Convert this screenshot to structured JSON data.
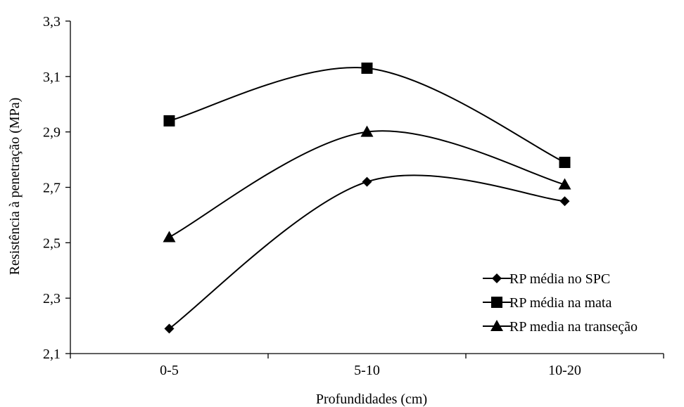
{
  "chart_data": {
    "type": "line",
    "categories": [
      "0-5",
      "5-10",
      "10-20"
    ],
    "xlabel": "Profundidades (cm)",
    "ylabel": "Resistência à penetração  (MPa)",
    "ylim": [
      2.1,
      3.3
    ],
    "yticks": [
      "2,1",
      "2,3",
      "2,5",
      "2,7",
      "2,9",
      "3,1",
      "3,3"
    ],
    "smooth": true,
    "legend_position": "bottom-right",
    "series": [
      {
        "name": "RP média no SPC",
        "marker": "diamond",
        "values": [
          2.19,
          2.72,
          2.65
        ]
      },
      {
        "name": "RP média na mata",
        "marker": "square",
        "values": [
          2.94,
          3.13,
          2.79
        ]
      },
      {
        "name": "RP media na transeção",
        "marker": "triangle",
        "values": [
          2.52,
          2.9,
          2.71
        ]
      }
    ]
  }
}
